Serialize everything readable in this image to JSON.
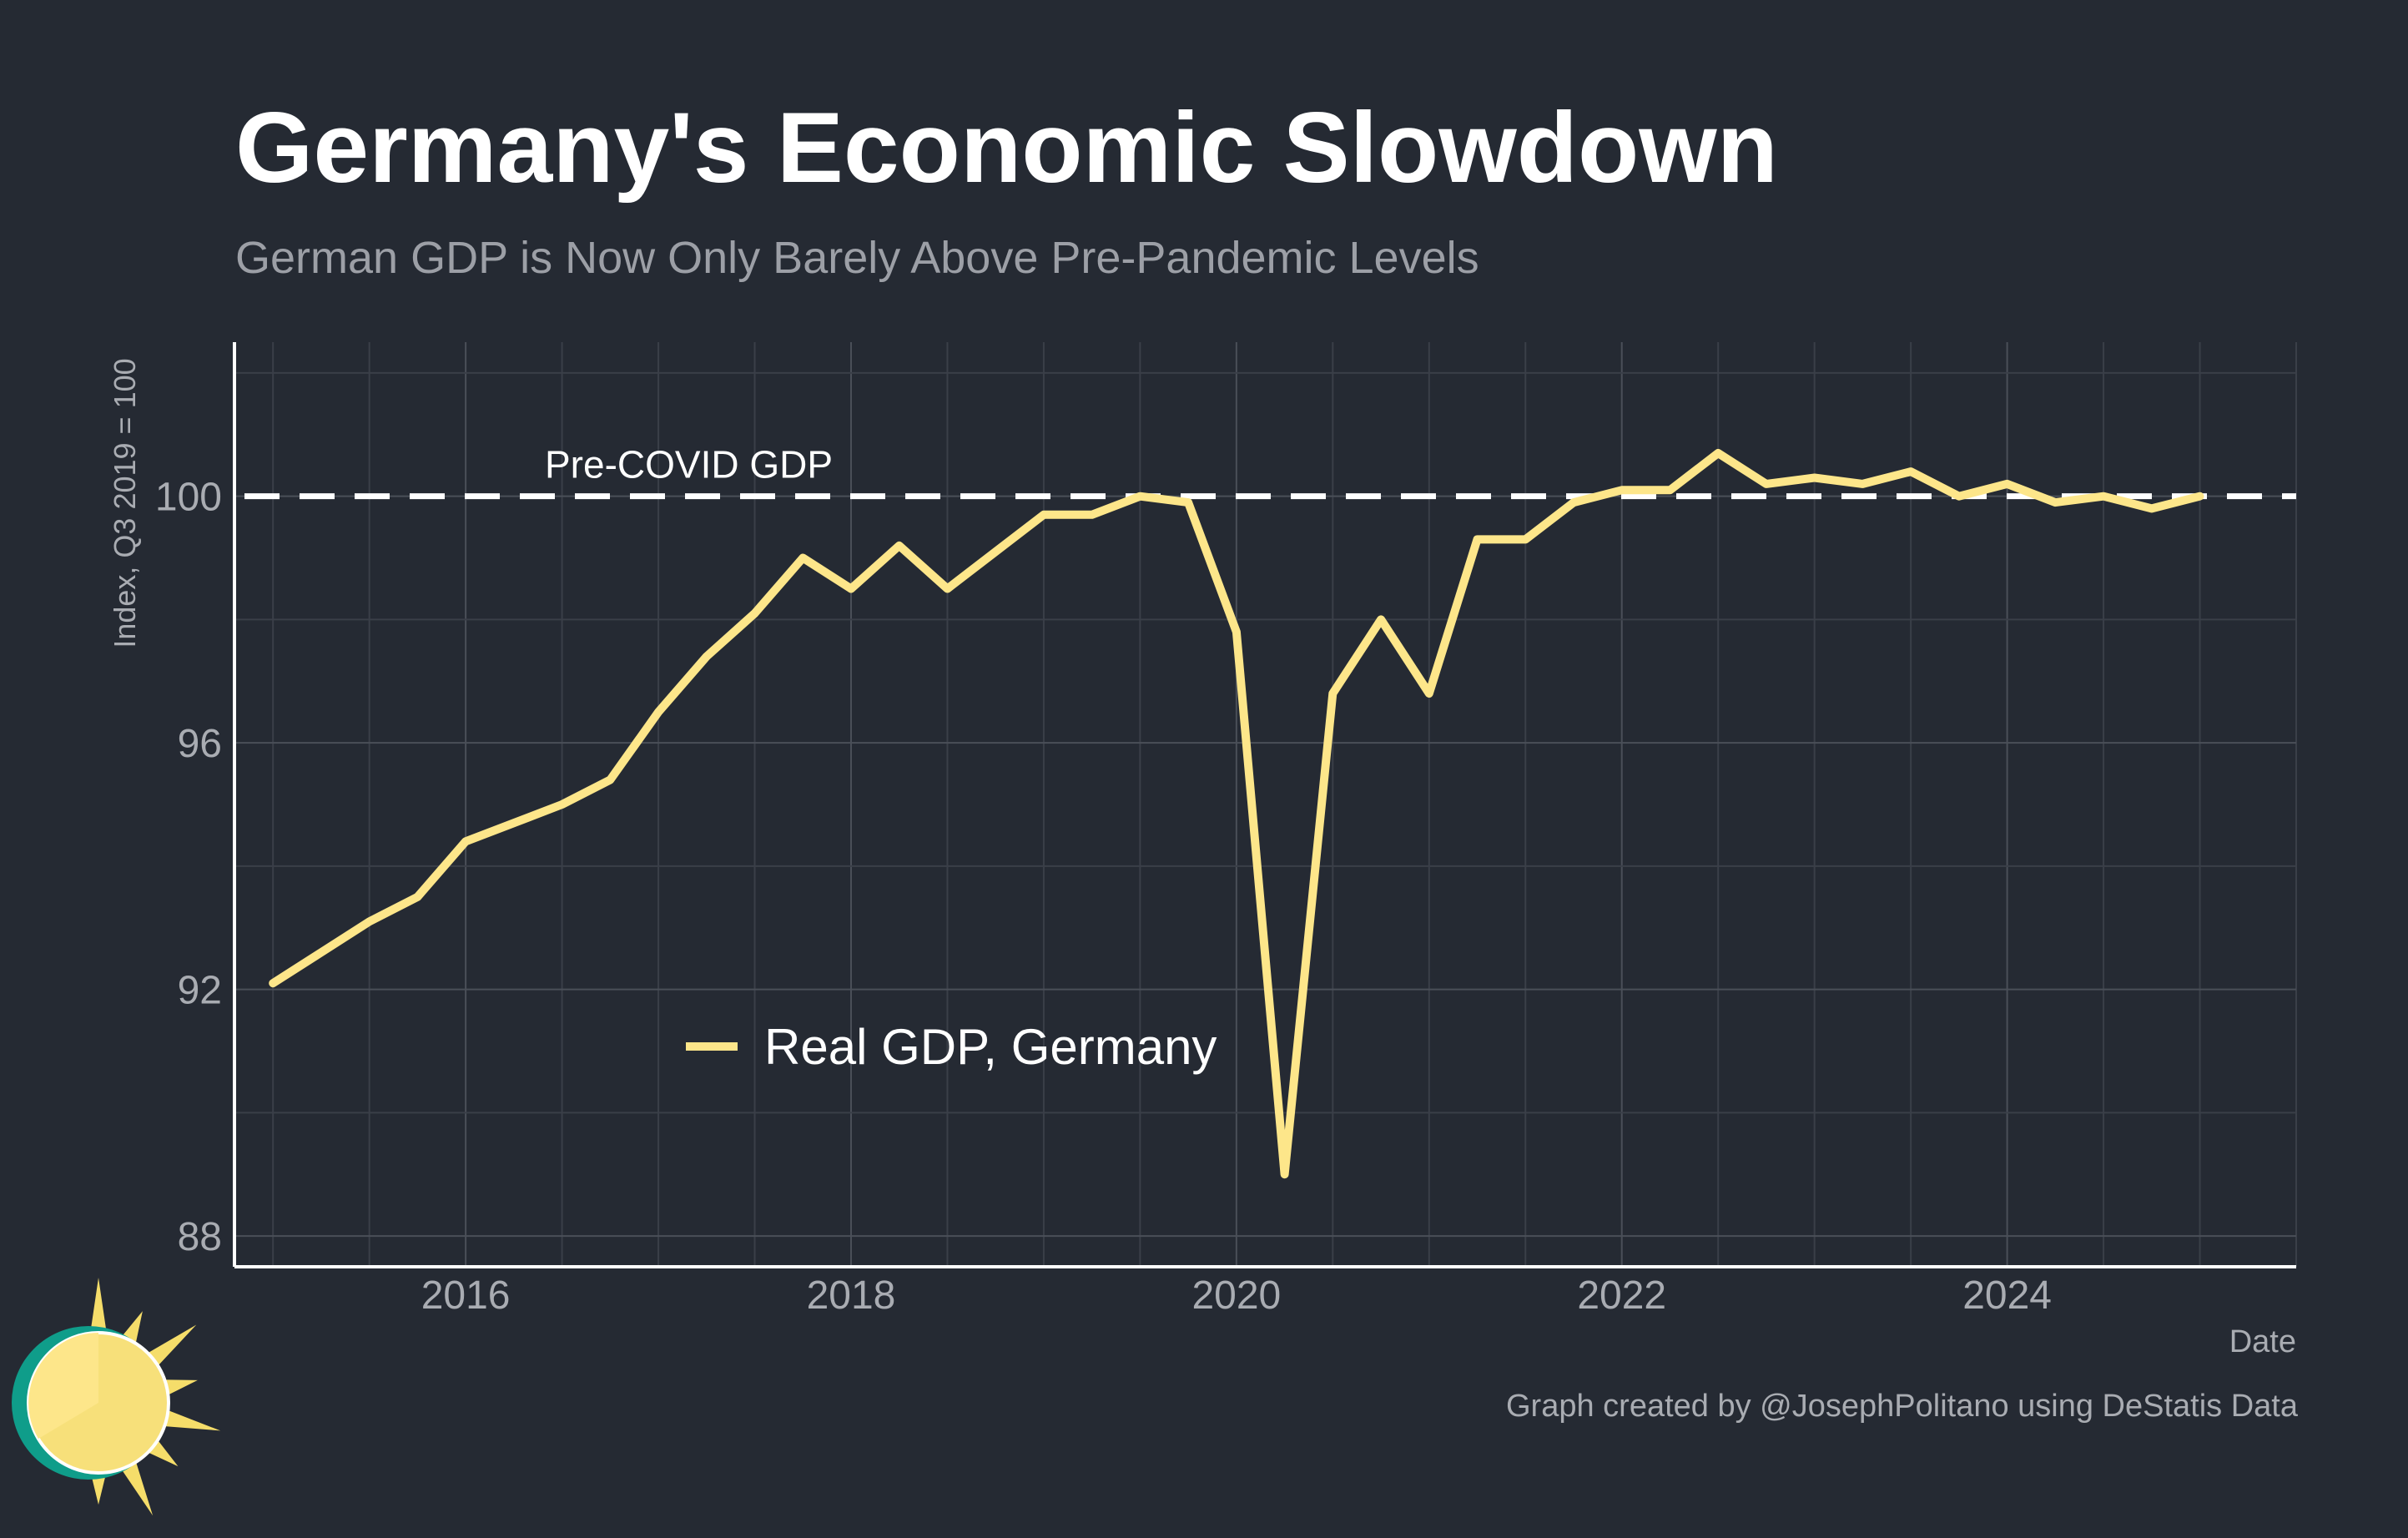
{
  "chart_data": {
    "type": "line",
    "title": "Germany's Economic Slowdown",
    "subtitle": "German GDP is Now Only Barely Above Pre-Pandemic Levels",
    "xlabel": "Date",
    "ylabel": "Index, Q3 2019 = 100",
    "xlim": [
      2014.8,
      2025.5
    ],
    "ylim": [
      87.5,
      102.5
    ],
    "x_ticks": [
      2016,
      2018,
      2020,
      2022,
      2024
    ],
    "x_tick_labels": [
      "2016",
      "2018",
      "2020",
      "2022",
      "2024"
    ],
    "y_ticks": [
      88,
      92,
      96,
      100
    ],
    "y_tick_labels": [
      "88",
      "92",
      "96",
      "100"
    ],
    "grid": true,
    "legend_position": "bottom-left",
    "reference_line": {
      "y": 100,
      "label": "Pre-COVID GDP",
      "style": "dashed",
      "color": "#ffffff"
    },
    "series": [
      {
        "name": "Real GDP, Germany",
        "color": "#fde68a",
        "x": [
          "2015-Q1",
          "2015-Q2",
          "2015-Q3",
          "2015-Q4",
          "2016-Q1",
          "2016-Q2",
          "2016-Q3",
          "2016-Q4",
          "2017-Q1",
          "2017-Q2",
          "2017-Q3",
          "2017-Q4",
          "2018-Q1",
          "2018-Q2",
          "2018-Q3",
          "2018-Q4",
          "2019-Q1",
          "2019-Q2",
          "2019-Q3",
          "2019-Q4",
          "2020-Q1",
          "2020-Q2",
          "2020-Q3",
          "2020-Q4",
          "2021-Q1",
          "2021-Q2",
          "2021-Q3",
          "2021-Q4",
          "2022-Q1",
          "2022-Q2",
          "2022-Q3",
          "2022-Q4",
          "2023-Q1",
          "2023-Q2",
          "2023-Q3",
          "2023-Q4",
          "2024-Q1",
          "2024-Q2",
          "2024-Q3",
          "2024-Q4",
          "2025-Q1"
        ],
        "values": [
          92.1,
          92.6,
          93.1,
          93.5,
          94.4,
          94.7,
          95.0,
          95.4,
          96.5,
          97.4,
          98.1,
          99.0,
          98.5,
          99.2,
          98.5,
          99.1,
          99.7,
          99.7,
          100.0,
          99.9,
          97.8,
          89.0,
          96.8,
          98.0,
          96.8,
          99.3,
          99.3,
          99.9,
          100.1,
          100.1,
          100.7,
          100.2,
          100.3,
          100.2,
          100.4,
          100.0,
          100.2,
          99.9,
          100.0,
          99.8,
          100.0
        ]
      }
    ]
  },
  "credit": "Graph created by @JosephPolitano using DeStatis Data"
}
